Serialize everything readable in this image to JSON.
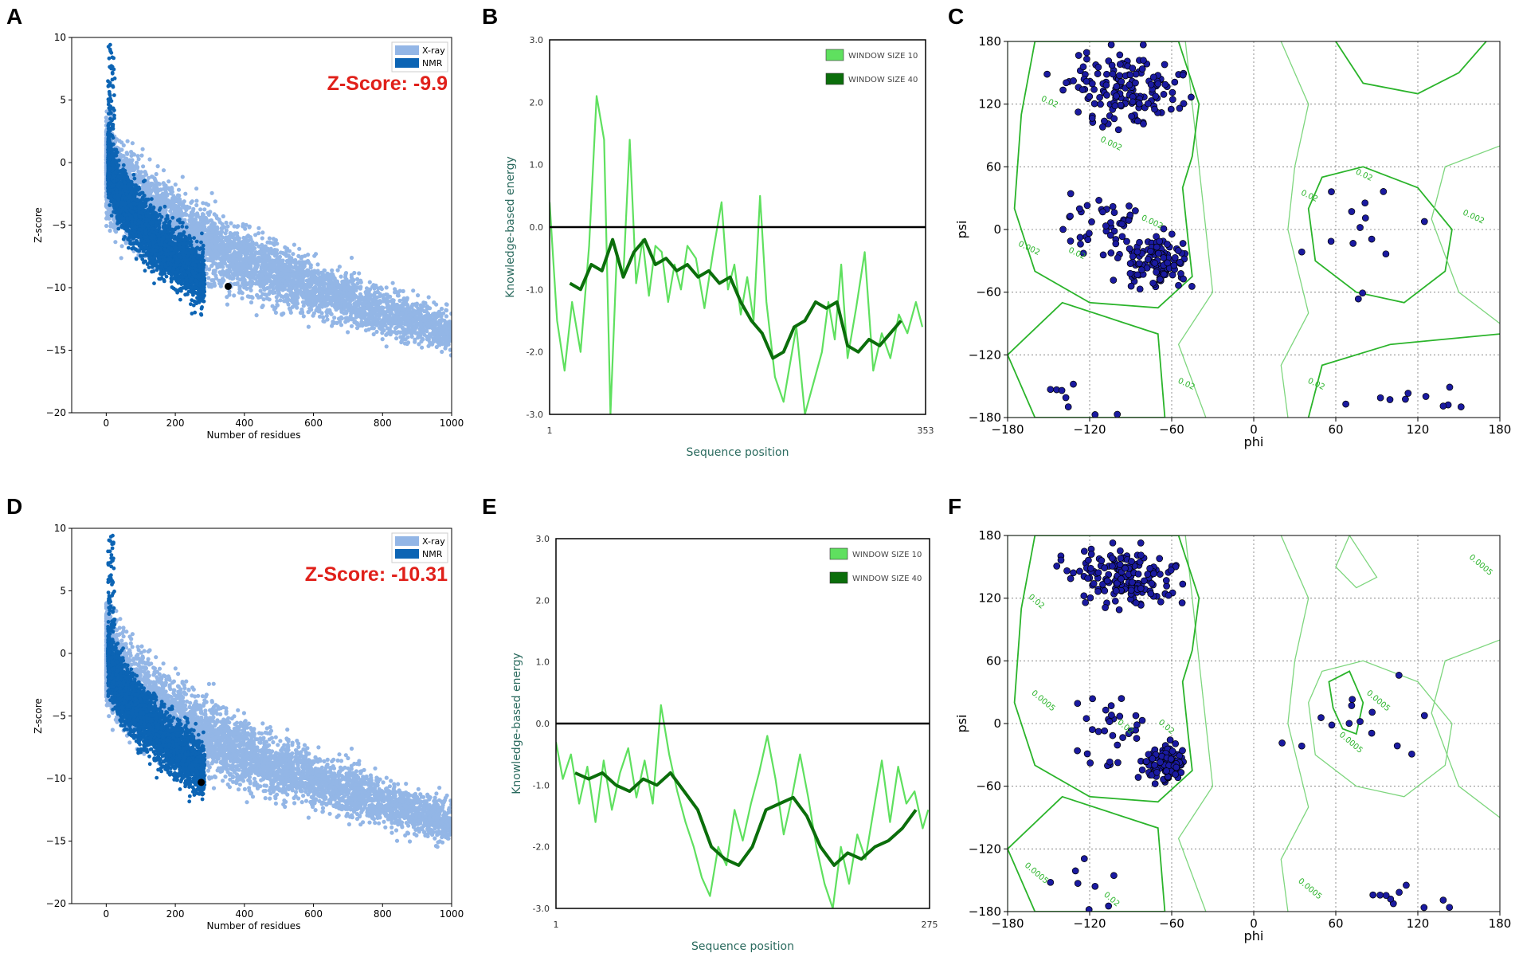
{
  "colors": {
    "xray": "#93b6e6",
    "nmr": "#0c64b4",
    "highlight": "#000000",
    "zscore_text": "#e0201a",
    "window10": "#5fe05f",
    "window40": "#0b6e0b",
    "contour": "#2bb42b",
    "residue": "#1a1aa0"
  },
  "panels": {
    "A": {
      "label": "A"
    },
    "B": {
      "label": "B"
    },
    "C": {
      "label": "C"
    },
    "D": {
      "label": "D"
    },
    "E": {
      "label": "E"
    },
    "F": {
      "label": "F"
    }
  },
  "chart_data": [
    {
      "id": "A",
      "type": "scatter",
      "title": "",
      "annotation": "Z-Score: -9.9",
      "xlabel": "Number of residues",
      "ylabel": "Z-score",
      "xlim": [
        -100,
        1000
      ],
      "ylim": [
        -20,
        10
      ],
      "xticks": [
        "0",
        "200",
        "400",
        "600",
        "800",
        "1000"
      ],
      "yticks": [
        "10",
        "5",
        "0",
        "−5",
        "−10",
        "−15",
        "−20"
      ],
      "legend": [
        "X-ray",
        "NMR"
      ],
      "legend_position": "top-right",
      "highlight_point": {
        "x": 353,
        "y": -9.9
      }
    },
    {
      "id": "B",
      "type": "line",
      "xlabel": "Sequence position",
      "ylabel": "Knowledge-based energy",
      "xlim": [
        1,
        353
      ],
      "ylim": [
        -3,
        3
      ],
      "xticks": [
        "1",
        "353"
      ],
      "yticks": [
        "3.0",
        "2.0",
        "1.0",
        "0.0",
        "-1.0",
        "-2.0",
        "-3.0"
      ],
      "legend": [
        "WINDOW SIZE 10",
        "WINDOW SIZE 40"
      ],
      "legend_position": "top-right",
      "series": [
        {
          "name": "window size 10",
          "x": [
            1,
            8,
            15,
            22,
            30,
            38,
            45,
            52,
            58,
            64,
            70,
            76,
            82,
            88,
            94,
            100,
            106,
            112,
            118,
            124,
            130,
            138,
            146,
            154,
            162,
            168,
            174,
            180,
            186,
            192,
            198,
            204,
            212,
            220,
            226,
            232,
            240,
            248,
            256,
            262,
            268,
            274,
            280,
            288,
            296,
            304,
            312,
            320,
            328,
            336,
            344,
            350
          ],
          "values": [
            0.4,
            -1.5,
            -2.3,
            -1.2,
            -2.0,
            -0.3,
            2.1,
            1.4,
            -3.0,
            -0.4,
            -0.8,
            1.4,
            -0.9,
            -0.2,
            -1.1,
            -0.3,
            -0.4,
            -1.2,
            -0.6,
            -1.0,
            -0.3,
            -0.5,
            -1.3,
            -0.4,
            0.4,
            -1.0,
            -0.6,
            -1.4,
            -0.8,
            -1.5,
            0.5,
            -1.2,
            -2.4,
            -2.8,
            -2.2,
            -1.6,
            -3.0,
            -2.5,
            -2.0,
            -1.2,
            -1.8,
            -0.6,
            -2.1,
            -1.3,
            -0.4,
            -2.3,
            -1.7,
            -2.1,
            -1.4,
            -1.7,
            -1.2,
            -1.6
          ]
        },
        {
          "name": "window size 40",
          "x": [
            20,
            30,
            40,
            50,
            60,
            70,
            80,
            90,
            100,
            110,
            120,
            130,
            140,
            150,
            160,
            170,
            180,
            190,
            200,
            210,
            220,
            230,
            240,
            250,
            260,
            270,
            280,
            290,
            300,
            310,
            320,
            330
          ],
          "values": [
            -0.9,
            -1.0,
            -0.6,
            -0.7,
            -0.2,
            -0.8,
            -0.4,
            -0.2,
            -0.6,
            -0.5,
            -0.7,
            -0.6,
            -0.8,
            -0.7,
            -0.9,
            -0.8,
            -1.2,
            -1.5,
            -1.7,
            -2.1,
            -2.0,
            -1.6,
            -1.5,
            -1.2,
            -1.3,
            -1.2,
            -1.9,
            -2.0,
            -1.8,
            -1.9,
            -1.7,
            -1.5
          ]
        }
      ]
    },
    {
      "id": "C",
      "type": "scatter",
      "xlabel": "phi",
      "ylabel": "psi",
      "xlim": [
        -180,
        180
      ],
      "ylim": [
        -180,
        180
      ],
      "xticks": [
        "−180",
        "−120",
        "−60",
        "0",
        "60",
        "120",
        "180"
      ],
      "yticks": [
        "180",
        "120",
        "60",
        "0",
        "−60",
        "−120",
        "−180"
      ],
      "contour_labels": [
        "0.02",
        "0.02",
        "0.002",
        "0.002",
        "0.02",
        "0.002",
        "0.02",
        "0.002",
        "0.02",
        "0.02"
      ]
    },
    {
      "id": "D",
      "type": "scatter",
      "annotation": "Z-Score: -10.31",
      "xlabel": "Number of residues",
      "ylabel": "Z-score",
      "xlim": [
        -100,
        1000
      ],
      "ylim": [
        -20,
        10
      ],
      "xticks": [
        "0",
        "200",
        "400",
        "600",
        "800",
        "1000"
      ],
      "yticks": [
        "10",
        "5",
        "0",
        "−5",
        "−10",
        "−15",
        "−20"
      ],
      "legend": [
        "X-ray",
        "NMR"
      ],
      "legend_position": "top-right",
      "highlight_point": {
        "x": 275,
        "y": -10.31
      }
    },
    {
      "id": "E",
      "type": "line",
      "xlabel": "Sequence position",
      "ylabel": "Knowledge-based energy",
      "xlim": [
        1,
        275
      ],
      "ylim": [
        -3,
        3
      ],
      "xticks": [
        "1",
        "275"
      ],
      "yticks": [
        "3.0",
        "2.0",
        "1.0",
        "0.0",
        "-1.0",
        "-2.0",
        "-3.0"
      ],
      "legend": [
        "WINDOW SIZE 10",
        "WINDOW SIZE 40"
      ],
      "legend_position": "top-right",
      "series": [
        {
          "name": "window size 10",
          "x": [
            1,
            6,
            12,
            18,
            24,
            30,
            36,
            42,
            48,
            54,
            60,
            66,
            72,
            78,
            84,
            90,
            96,
            102,
            108,
            114,
            120,
            126,
            132,
            138,
            144,
            150,
            156,
            162,
            168,
            174,
            180,
            186,
            192,
            198,
            204,
            210,
            216,
            222,
            228,
            234,
            240,
            246,
            252,
            258,
            264,
            270,
            274
          ],
          "values": [
            -0.3,
            -0.9,
            -0.5,
            -1.3,
            -0.7,
            -1.6,
            -0.6,
            -1.4,
            -0.8,
            -0.4,
            -1.2,
            -0.6,
            -1.3,
            0.3,
            -0.5,
            -1.1,
            -1.6,
            -2.0,
            -2.5,
            -2.8,
            -2.0,
            -2.3,
            -1.4,
            -1.9,
            -1.3,
            -0.8,
            -0.2,
            -0.9,
            -1.8,
            -1.2,
            -0.5,
            -1.2,
            -2.0,
            -2.6,
            -3.0,
            -2.0,
            -2.6,
            -1.8,
            -2.2,
            -1.4,
            -0.6,
            -1.6,
            -0.7,
            -1.3,
            -1.1,
            -1.7,
            -1.4
          ]
        },
        {
          "name": "window size 40",
          "x": [
            15,
            25,
            35,
            45,
            55,
            65,
            75,
            85,
            95,
            105,
            115,
            125,
            135,
            145,
            155,
            165,
            175,
            185,
            195,
            205,
            215,
            225,
            235,
            245,
            255,
            265
          ],
          "values": [
            -0.8,
            -0.9,
            -0.8,
            -1.0,
            -1.1,
            -0.9,
            -1.0,
            -0.8,
            -1.1,
            -1.4,
            -2.0,
            -2.2,
            -2.3,
            -2.0,
            -1.4,
            -1.3,
            -1.2,
            -1.5,
            -2.0,
            -2.3,
            -2.1,
            -2.2,
            -2.0,
            -1.9,
            -1.7,
            -1.4
          ]
        }
      ]
    },
    {
      "id": "F",
      "type": "scatter",
      "xlabel": "phi",
      "ylabel": "psi",
      "xlim": [
        -180,
        180
      ],
      "ylim": [
        -180,
        180
      ],
      "xticks": [
        "−180",
        "−120",
        "−60",
        "0",
        "60",
        "120",
        "180"
      ],
      "yticks": [
        "180",
        "120",
        "60",
        "0",
        "−60",
        "−120",
        "−180"
      ],
      "contour_labels": [
        "0.02",
        "0.02",
        "0.0005",
        "0.02",
        "0.0005",
        "0.0005",
        "0.0005",
        "0.0005",
        "0.0005",
        "0.02"
      ]
    }
  ]
}
